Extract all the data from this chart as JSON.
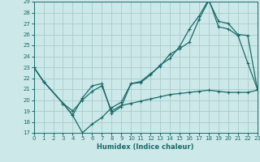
{
  "bg_color": "#cce8e8",
  "grid_color": "#aacccc",
  "line_color": "#1a6b6b",
  "line_width": 0.9,
  "marker": "+",
  "marker_size": 3.5,
  "line1_x": [
    0,
    1,
    3,
    4,
    5,
    6,
    7,
    8,
    9,
    10,
    11,
    12,
    13,
    14,
    15,
    16,
    17,
    18,
    19,
    20,
    21,
    22,
    23
  ],
  "line1_y": [
    23,
    21.7,
    19.7,
    18.6,
    20.2,
    21.3,
    21.5,
    18.8,
    19.4,
    21.5,
    21.6,
    22.3,
    23.2,
    23.8,
    24.9,
    26.5,
    27.7,
    29.2,
    26.7,
    26.5,
    25.9,
    23.4,
    21.0
  ],
  "line2_x": [
    0,
    1,
    3,
    4,
    5,
    6,
    7,
    8,
    9,
    10,
    11,
    12,
    13,
    14,
    15,
    16,
    17,
    18,
    19,
    20,
    21,
    22,
    23
  ],
  "line2_y": [
    23,
    21.7,
    19.7,
    18.6,
    17.0,
    17.8,
    18.4,
    19.3,
    19.8,
    21.5,
    21.7,
    22.4,
    23.1,
    24.2,
    24.7,
    25.3,
    27.4,
    29.1,
    27.2,
    27.0,
    26.0,
    25.9,
    21.0
  ],
  "line3_x": [
    0,
    1,
    3,
    4,
    5,
    6,
    7,
    8,
    9,
    10,
    11,
    12,
    13,
    14,
    15,
    16,
    17,
    18,
    19,
    20,
    21,
    22,
    23
  ],
  "line3_y": [
    23,
    21.7,
    19.7,
    19.0,
    20.0,
    20.8,
    21.3,
    19.0,
    19.5,
    19.7,
    19.9,
    20.1,
    20.3,
    20.5,
    20.6,
    20.7,
    20.8,
    20.9,
    20.8,
    20.7,
    20.7,
    20.7,
    20.9
  ],
  "xlabel": "Humidex (Indice chaleur)",
  "xlim": [
    0,
    23
  ],
  "ylim": [
    17,
    29
  ],
  "yticks": [
    17,
    18,
    19,
    20,
    21,
    22,
    23,
    24,
    25,
    26,
    27,
    28,
    29
  ],
  "xticks": [
    0,
    1,
    2,
    3,
    4,
    5,
    6,
    7,
    8,
    9,
    10,
    11,
    12,
    13,
    14,
    15,
    16,
    17,
    18,
    19,
    20,
    21,
    22,
    23
  ]
}
